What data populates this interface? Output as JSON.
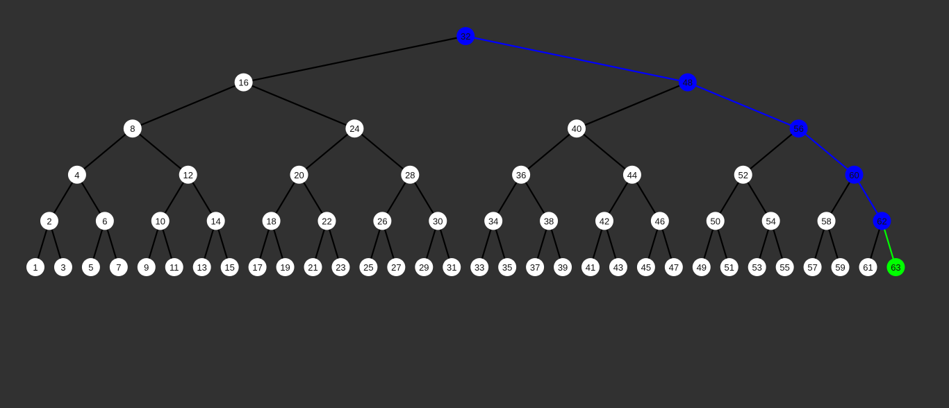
{
  "tree": {
    "root": 32,
    "levels": [
      [
        32
      ],
      [
        16,
        48
      ],
      [
        8,
        24,
        40,
        56
      ],
      [
        4,
        12,
        20,
        28,
        36,
        44,
        52,
        60
      ],
      [
        2,
        6,
        10,
        14,
        18,
        22,
        26,
        30,
        34,
        38,
        42,
        46,
        50,
        54,
        58,
        62
      ],
      [
        1,
        3,
        5,
        7,
        9,
        11,
        13,
        15,
        17,
        19,
        21,
        23,
        25,
        27,
        29,
        31,
        33,
        35,
        37,
        39,
        41,
        43,
        45,
        47,
        49,
        51,
        53,
        55,
        57,
        59,
        61,
        63
      ]
    ],
    "search_path": [
      32,
      48,
      56,
      60,
      62
    ],
    "found": 63
  },
  "colors": {
    "background": "#313131",
    "node": "#ffffff",
    "edge": "#000000",
    "path": "#0000ff",
    "found": "#00ff00",
    "label": "#111111"
  }
}
